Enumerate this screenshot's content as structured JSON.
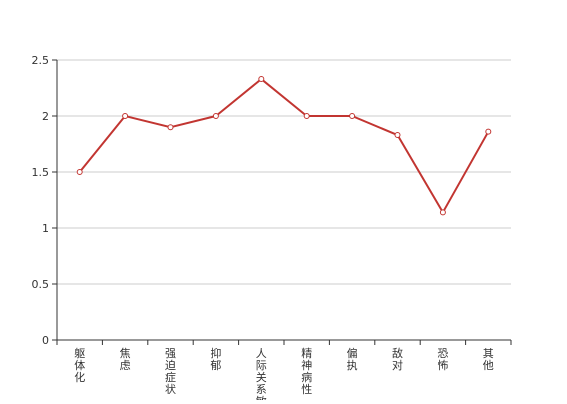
{
  "chart_data": {
    "type": "line",
    "title": "",
    "xlabel": "",
    "ylabel": "",
    "categories": [
      "躯体化",
      "焦虑",
      "强迫症状",
      "抑郁",
      "人际关系敏感",
      "精神病性",
      "偏执",
      "敌对",
      "恐怖",
      "其他"
    ],
    "series": [
      {
        "name": "",
        "values": [
          1.5,
          2.0,
          1.9,
          2.0,
          2.33,
          2.0,
          2.0,
          1.83,
          1.14,
          1.86
        ]
      }
    ],
    "ylim": [
      0,
      2.5
    ],
    "yticks": [
      0,
      0.5,
      1,
      1.5,
      2,
      2.5
    ],
    "ytick_labels": [
      "0",
      "0.5",
      "1",
      "1.5",
      "2",
      "2.5"
    ],
    "grid": "horizontal",
    "legend": "none",
    "colors": {
      "line": "#c23531",
      "grid": "#cccccc",
      "axis": "#333333",
      "text": "#333333"
    }
  }
}
